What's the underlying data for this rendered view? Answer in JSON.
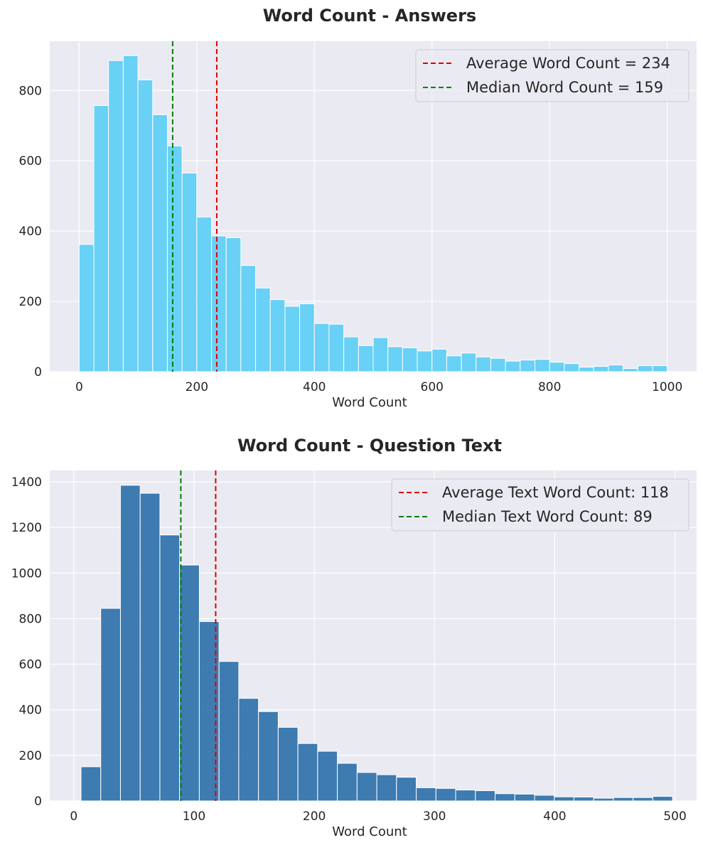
{
  "chart_data": [
    {
      "type": "bar",
      "title": "Word Count - Answers",
      "xlabel": "Word Count",
      "ylabel": "",
      "xlim": [
        -50,
        1050
      ],
      "ylim": [
        0,
        940
      ],
      "xticks": [
        0,
        200,
        400,
        600,
        800,
        1000
      ],
      "yticks": [
        0,
        200,
        400,
        600,
        800
      ],
      "grid": true,
      "legend_position": "top-right",
      "bar_color": "#5bcdf6",
      "bin_start": 0,
      "bin_width": 25,
      "values": [
        362,
        757,
        885,
        899,
        830,
        731,
        642,
        565,
        440,
        386,
        381,
        302,
        238,
        205,
        186,
        193,
        137,
        135,
        99,
        74,
        97,
        71,
        68,
        59,
        64,
        45,
        53,
        42,
        38,
        30,
        33,
        35,
        27,
        23,
        13,
        15,
        19,
        9,
        17,
        17
      ],
      "lines": [
        {
          "label": "Average Word Count = 234",
          "x": 234,
          "color": "#e00000"
        },
        {
          "label": "Median Word Count = 159",
          "x": 159,
          "color": "#008000"
        }
      ]
    },
    {
      "type": "bar",
      "title": "Word Count - Question Text",
      "xlabel": "Word Count",
      "ylabel": "",
      "xlim": [
        -20,
        518
      ],
      "ylim": [
        0,
        1450
      ],
      "xticks": [
        0,
        100,
        200,
        300,
        400,
        500
      ],
      "yticks": [
        0,
        200,
        400,
        600,
        800,
        1000,
        1200,
        1400
      ],
      "grid": true,
      "legend_position": "top-right",
      "bar_color": "#2a6faa",
      "bin_start": 6,
      "bin_width": 16.4,
      "values": [
        150,
        845,
        1385,
        1350,
        1167,
        1035,
        787,
        612,
        450,
        392,
        323,
        252,
        218,
        165,
        125,
        115,
        104,
        58,
        55,
        48,
        45,
        32,
        30,
        25,
        18,
        17,
        12,
        15,
        15,
        20
      ],
      "lines": [
        {
          "label": "Average Text Word Count: 118",
          "x": 118,
          "color": "#e00000"
        },
        {
          "label": "Median Text Word Count: 89",
          "x": 89,
          "color": "#008000"
        }
      ]
    }
  ]
}
